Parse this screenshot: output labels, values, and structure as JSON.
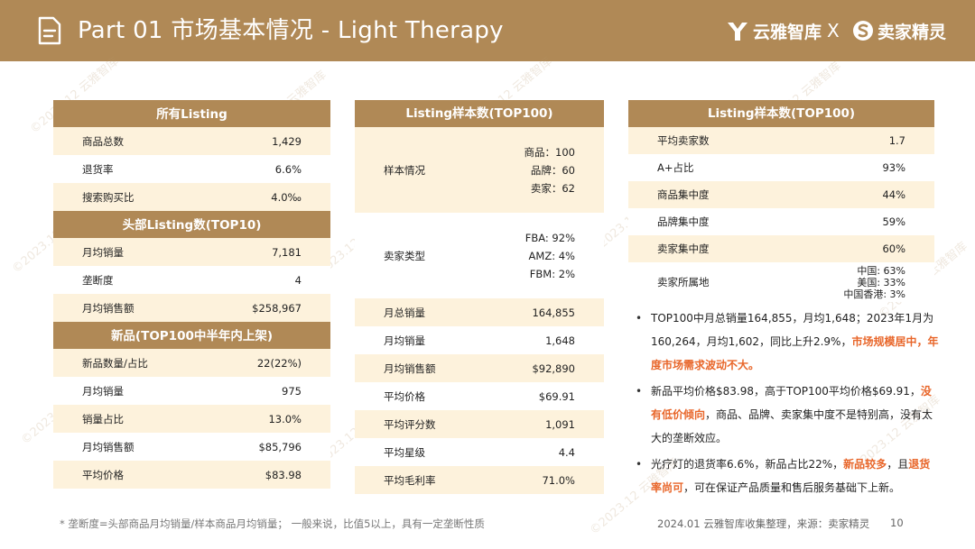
{
  "header": {
    "title": "Part 01 市场基本情况 - Light Therapy",
    "brand_left": "云雅智库",
    "separator": "X",
    "brand_right": "卖家精灵"
  },
  "panel_all": {
    "sections": [
      {
        "title": "所有Listing",
        "rows": [
          {
            "label": "商品总数",
            "value": "1,429"
          },
          {
            "label": "退货率",
            "value": "6.6%"
          },
          {
            "label": "搜索购买比",
            "value": "4.0‰"
          }
        ]
      },
      {
        "title": "头部Listing数(TOP10)",
        "rows": [
          {
            "label": "月均销量",
            "value": "7,181"
          },
          {
            "label": "垄断度",
            "value": "4"
          },
          {
            "label": "月均销售额",
            "value": "$258,967"
          }
        ]
      },
      {
        "title": "新品(TOP100中半年内上架)",
        "rows": [
          {
            "label": "新品数量/占比",
            "value": "22(22%)"
          },
          {
            "label": "月均销量",
            "value": "975"
          },
          {
            "label": "销量占比",
            "value": "13.0%"
          },
          {
            "label": "月均销售额",
            "value": "$85,796"
          },
          {
            "label": "平均价格",
            "value": "$83.98"
          }
        ]
      }
    ]
  },
  "panel_top100": {
    "title": "Listing样本数(TOP100)",
    "sample_label": "样本情况",
    "sample_values": [
      "商品：100",
      "品牌：60",
      "卖家：62"
    ],
    "seller_type_label": "卖家类型",
    "seller_type_values": [
      "FBA: 92%",
      "AMZ: 4%",
      "FBM: 2%"
    ],
    "rows": [
      {
        "label": "月总销量",
        "value": "164,855"
      },
      {
        "label": "月均销量",
        "value": "1,648"
      },
      {
        "label": "月均销售额",
        "value": "$92,890"
      },
      {
        "label": "平均价格",
        "value": "$69.91"
      },
      {
        "label": "平均评分数",
        "value": "1,091"
      },
      {
        "label": "平均星级",
        "value": "4.4"
      },
      {
        "label": "平均毛利率",
        "value": "71.0%"
      }
    ]
  },
  "panel_sellers": {
    "title": "Listing样本数(TOP100)",
    "rows": [
      {
        "label": "平均卖家数",
        "value": "1.7"
      },
      {
        "label": "A+占比",
        "value": "93%"
      },
      {
        "label": "商品集中度",
        "value": "44%"
      },
      {
        "label": "品牌集中度",
        "value": "59%"
      },
      {
        "label": "卖家集中度",
        "value": "60%"
      }
    ],
    "origin_label": "卖家所属地",
    "origin_values": [
      "中国: 63%",
      "美国: 33%",
      "中国香港: 3%"
    ]
  },
  "bullets": {
    "b1_text": "TOP100中月总销量164,855，月均1,648；2023年1月为160,264，月均1,602，同比上升2.9%，",
    "b1_hl": "市场规模居中，年度市场需求波动不大。",
    "b2_text1": "新品平均价格$83.98，高于TOP100平均价格$69.91，",
    "b2_hl": "没有低价倾向",
    "b2_text2": "，商品、品牌、卖家集中度不是特别高，没有太大的垄断效应。",
    "b3_text1": "光疗灯的退货率6.6%，新品占比22%，",
    "b3_hl1": "新品较多",
    "b3_text2": "，且",
    "b3_hl2": "退货率尚可",
    "b3_text3": "，可在保证产品质量和售后服务基础下上新。"
  },
  "footer": {
    "footnote": "* 垄断度=头部商品月均销量/样本商品月均销量；  一般来说，比值5以上，具有一定垄断性质",
    "source": "2024.01 云雅智库收集整理，来源：卖家精灵",
    "page": "10"
  },
  "watermark": "©2023.12 云雅智库",
  "colors": {
    "header_bg": "#b08956",
    "row_tint": "#fdf2dc",
    "highlight": "#e8662a"
  }
}
